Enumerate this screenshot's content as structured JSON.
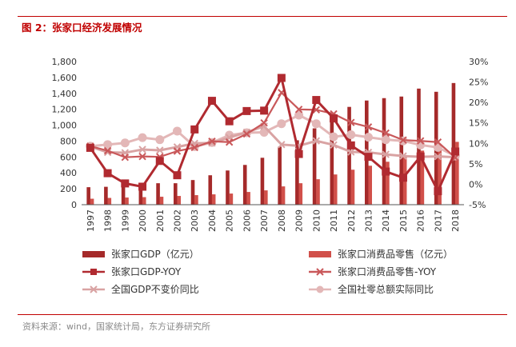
{
  "figure": {
    "title": "图 2：张家口经济发展情况",
    "source": "资料来源：wind，国家统计局，东方证券研究所"
  },
  "chart_data": {
    "type": "bar+line",
    "title": "图 2：张家口经济发展情况",
    "categories": [
      "1997",
      "1998",
      "1999",
      "2000",
      "2001",
      "2002",
      "2003",
      "2004",
      "2005",
      "2006",
      "2007",
      "2008",
      "2009",
      "2010",
      "2011",
      "2012",
      "2013",
      "2014",
      "2015",
      "2016",
      "2017",
      "2018"
    ],
    "y_left": {
      "min": 0,
      "max": 1800,
      "step": 200,
      "ticks": [
        "0",
        "200",
        "400",
        "600",
        "800",
        "1,000",
        "1,200",
        "1,400",
        "1,600",
        "1,800"
      ]
    },
    "y_right": {
      "min": -5,
      "max": 30,
      "step": 5,
      "ticks": [
        "-5%",
        "0%",
        "5%",
        "10%",
        "15%",
        "20%",
        "25%",
        "30%"
      ]
    },
    "grid": false,
    "legend_position": "bottom",
    "series": [
      {
        "name": "张家口GDP（亿元）",
        "kind": "bar",
        "axis": "left",
        "color": "#a52a2a",
        "values": [
          220,
          225,
          240,
          255,
          270,
          270,
          310,
          370,
          430,
          500,
          590,
          730,
          810,
          960,
          1140,
          1230,
          1310,
          1340,
          1360,
          1460,
          1420,
          1530
        ]
      },
      {
        "name": "张家口消费品零售（亿元）",
        "kind": "bar",
        "axis": "left",
        "color": "#d1504a",
        "values": [
          75,
          85,
          90,
          95,
          100,
          110,
          120,
          130,
          140,
          160,
          180,
          230,
          270,
          320,
          380,
          440,
          490,
          540,
          610,
          680,
          745,
          790
        ]
      },
      {
        "name": "张家口GDP-YOY",
        "kind": "line",
        "marker": "square",
        "axis": "right",
        "color": "#b02a30",
        "values": [
          8.9,
          2.7,
          0.2,
          -0.6,
          5.7,
          2.2,
          13.4,
          20.4,
          15.4,
          17.9,
          18.0,
          26.0,
          7.4,
          20.6,
          16.1,
          9.5,
          6.7,
          3.1,
          1.6,
          6.8,
          -1.7,
          8.0
        ]
      },
      {
        "name": "张家口消费品零售-YOY",
        "kind": "line",
        "marker": "x",
        "axis": "right",
        "color": "#c9585a",
        "values": [
          9.3,
          8.2,
          6.6,
          6.8,
          6.7,
          8.1,
          9.0,
          10.5,
          10.3,
          12.3,
          15.0,
          22.4,
          18.3,
          18.2,
          17.2,
          15.1,
          14.0,
          12.5,
          10.8,
          10.6,
          10.3,
          6.5
        ]
      },
      {
        "name": "全国GDP不变价同比",
        "kind": "line",
        "marker": "x",
        "axis": "right",
        "color": "#d9a3a3",
        "values": [
          9.2,
          7.8,
          7.7,
          8.5,
          8.3,
          9.1,
          10.0,
          10.1,
          11.4,
          12.7,
          14.2,
          9.7,
          9.4,
          10.6,
          9.6,
          7.9,
          7.8,
          7.3,
          6.9,
          6.7,
          6.8,
          6.6
        ]
      },
      {
        "name": "全国社零总额实际同比",
        "kind": "line",
        "marker": "circle",
        "axis": "right",
        "color": "#e3b7b7",
        "values": [
          9.3,
          9.7,
          10.1,
          11.4,
          10.9,
          13.0,
          9.2,
          10.2,
          12.0,
          12.6,
          12.7,
          14.8,
          16.9,
          14.8,
          11.6,
          12.1,
          11.5,
          10.9,
          10.6,
          9.6,
          9.0,
          6.9
        ]
      }
    ]
  }
}
